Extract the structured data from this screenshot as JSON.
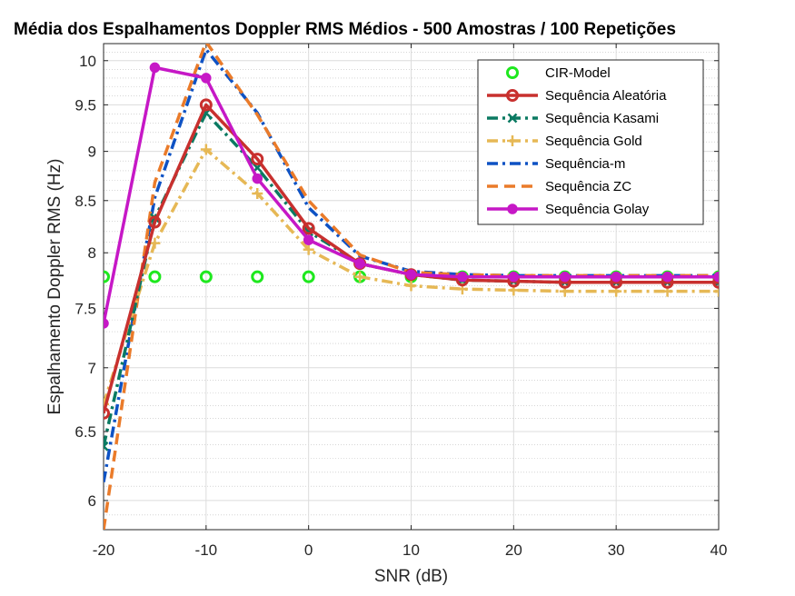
{
  "chart_data": {
    "type": "line",
    "title": "Média dos Espalhamentos Doppler RMS Médios - 500 Amostras / 100 Repetições",
    "xlabel": "SNR (dB)",
    "ylabel": "Espalhamento Doppler RMS (Hz)",
    "xlim": [
      -20,
      40
    ],
    "ylim": [
      5.8,
      10.2
    ],
    "y_scale": "log",
    "grid": true,
    "minor_grid": true,
    "legend_position": "top-right",
    "x_ticks": [
      "-20",
      "-10",
      "0",
      "10",
      "20",
      "30",
      "40"
    ],
    "y_ticks": [
      "6",
      "6.5",
      "7",
      "7.5",
      "8",
      "8.5",
      "9",
      "9.5",
      "10"
    ],
    "x": [
      -20,
      -15,
      -10,
      -5,
      0,
      5,
      10,
      15,
      20,
      25,
      30,
      35,
      40
    ],
    "series": [
      {
        "name": "CIR-Model",
        "color": "#1ee81e",
        "style": "markers-only",
        "marker": "circle-open",
        "values": [
          7.78,
          7.78,
          7.78,
          7.78,
          7.78,
          7.78,
          7.78,
          7.78,
          7.78,
          7.78,
          7.78,
          7.78,
          7.78
        ]
      },
      {
        "name": "Sequência Aleatória",
        "color": "#c8302e",
        "style": "solid",
        "marker": "circle-open",
        "values": [
          6.64,
          8.29,
          9.5,
          8.92,
          8.23,
          7.9,
          7.8,
          7.75,
          7.74,
          7.73,
          7.73,
          7.73,
          7.73
        ]
      },
      {
        "name": "Sequência Kasami",
        "color": "#0b7a62",
        "style": "dash-dot",
        "marker": "x",
        "values": [
          6.39,
          8.33,
          9.41,
          8.83,
          8.2,
          7.9,
          7.8,
          7.75,
          7.74,
          7.73,
          7.73,
          7.73,
          7.73
        ]
      },
      {
        "name": "Sequência Gold",
        "color": "#e6b855",
        "style": "dash-dot",
        "marker": "plus",
        "values": [
          6.71,
          8.09,
          9.02,
          8.57,
          8.03,
          7.78,
          7.7,
          7.67,
          7.66,
          7.65,
          7.65,
          7.65,
          7.65
        ]
      },
      {
        "name": "Sequência-m",
        "color": "#0e52c4",
        "style": "dash-dot",
        "marker": "none",
        "values": [
          6.13,
          8.53,
          10.13,
          9.41,
          8.43,
          7.97,
          7.83,
          7.8,
          7.79,
          7.79,
          7.79,
          7.79,
          7.79
        ]
      },
      {
        "name": "Sequência ZC",
        "color": "#ea7b2a",
        "style": "dashed",
        "marker": "none",
        "values": [
          5.8,
          8.68,
          10.22,
          9.39,
          8.5,
          7.98,
          7.82,
          7.8,
          7.79,
          7.79,
          7.79,
          7.79,
          7.79
        ]
      },
      {
        "name": "Sequência Golay",
        "color": "#c618c6",
        "style": "solid",
        "marker": "circle-filled",
        "values": [
          7.37,
          9.92,
          9.8,
          8.72,
          8.12,
          7.9,
          7.8,
          7.78,
          7.78,
          7.78,
          7.78,
          7.78,
          7.78
        ]
      }
    ]
  }
}
